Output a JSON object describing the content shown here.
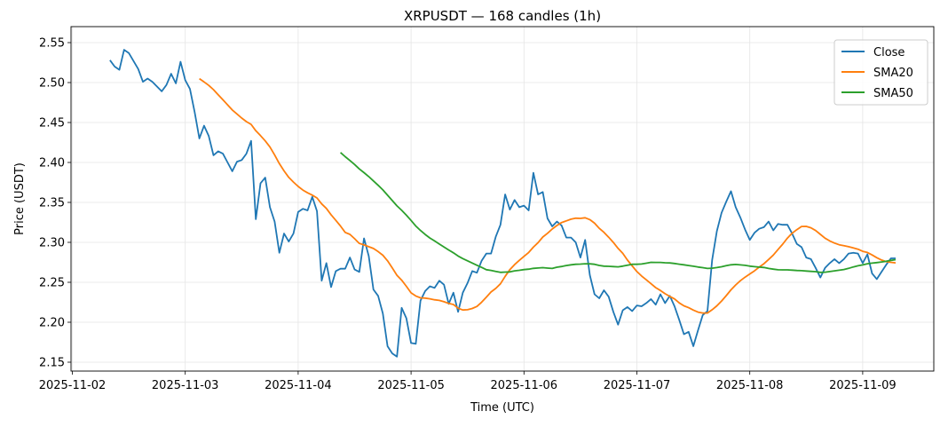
{
  "chart_data": {
    "type": "line",
    "title": "XRPUSDT — 168 candles (1h)",
    "xlabel": "Time (UTC)",
    "ylabel": "Price (USDT)",
    "ylim": [
      2.135,
      2.57
    ],
    "yticks": [
      2.15,
      2.2,
      2.25,
      2.3,
      2.35,
      2.4,
      2.45,
      2.5,
      2.55
    ],
    "ytick_labels": [
      "2.15",
      "2.20",
      "2.25",
      "2.30",
      "2.35",
      "2.40",
      "2.45",
      "2.50",
      "2.55"
    ],
    "xtick_labels": [
      "2025-11-02",
      "2025-11-03",
      "2025-11-04",
      "2025-11-05",
      "2025-11-06",
      "2025-11-07",
      "2025-11-08",
      "2025-11-09"
    ],
    "x_start_hours_after_first_tick": 8,
    "interval_hours": 1,
    "grid": true,
    "legend_placement": "top-right",
    "series": [
      {
        "name": "Close",
        "color": "#1f77b4",
        "values": [
          2.528,
          2.52,
          2.516,
          2.541,
          2.537,
          2.527,
          2.517,
          2.501,
          2.505,
          2.501,
          2.495,
          2.489,
          2.497,
          2.511,
          2.499,
          2.526,
          2.503,
          2.492,
          2.463,
          2.43,
          2.446,
          2.433,
          2.409,
          2.414,
          2.411,
          2.4,
          2.389,
          2.401,
          2.403,
          2.411,
          2.427,
          2.329,
          2.374,
          2.381,
          2.344,
          2.326,
          2.287,
          2.311,
          2.301,
          2.311,
          2.338,
          2.342,
          2.34,
          2.357,
          2.339,
          2.252,
          2.274,
          2.244,
          2.264,
          2.267,
          2.267,
          2.281,
          2.266,
          2.263,
          2.305,
          2.283,
          2.241,
          2.233,
          2.211,
          2.17,
          2.161,
          2.157,
          2.218,
          2.205,
          2.174,
          2.173,
          2.227,
          2.239,
          2.245,
          2.243,
          2.252,
          2.247,
          2.223,
          2.237,
          2.213,
          2.237,
          2.249,
          2.264,
          2.262,
          2.277,
          2.286,
          2.286,
          2.307,
          2.322,
          2.36,
          2.341,
          2.353,
          2.344,
          2.346,
          2.34,
          2.387,
          2.36,
          2.363,
          2.33,
          2.32,
          2.326,
          2.321,
          2.306,
          2.306,
          2.3,
          2.281,
          2.303,
          2.259,
          2.235,
          2.23,
          2.24,
          2.232,
          2.213,
          2.197,
          2.215,
          2.219,
          2.214,
          2.221,
          2.22,
          2.224,
          2.229,
          2.222,
          2.235,
          2.224,
          2.233,
          2.22,
          2.203,
          2.185,
          2.188,
          2.17,
          2.19,
          2.209,
          2.214,
          2.278,
          2.314,
          2.337,
          2.351,
          2.364,
          2.344,
          2.331,
          2.316,
          2.303,
          2.312,
          2.317,
          2.319,
          2.326,
          2.315,
          2.323,
          2.322,
          2.322,
          2.311,
          2.298,
          2.294,
          2.281,
          2.279,
          2.268,
          2.256,
          2.268,
          2.274,
          2.279,
          2.274,
          2.279,
          2.286,
          2.287,
          2.286,
          2.274,
          2.285,
          2.261,
          2.254,
          2.263,
          2.272,
          2.28,
          2.28
        ]
      },
      {
        "name": "SMA20",
        "color": "#ff7f0e",
        "sma_of": "Close",
        "window": 20
      },
      {
        "name": "SMA50",
        "color": "#2ca02c",
        "sma_of": "Close",
        "window": 50
      }
    ]
  }
}
